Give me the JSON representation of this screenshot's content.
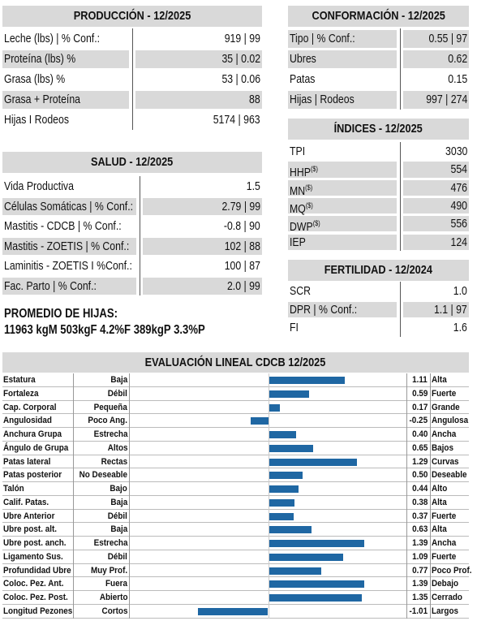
{
  "produccion": {
    "title": "PRODUCCIÓN - 12/2025",
    "rows": [
      {
        "label": "Leche (lbs) | % Conf.:",
        "value": "919 | 99"
      },
      {
        "label": "Proteína (lbs) %",
        "value": "35 | 0.02"
      },
      {
        "label": "Grasa (lbs) %",
        "value": "53 | 0.06"
      },
      {
        "label": "Grasa + Proteína",
        "value": "88"
      },
      {
        "label": "Hijas I Rodeos",
        "value": "5174 | 963"
      }
    ]
  },
  "conformacion": {
    "title": "CONFORMACIÓN - 12/2025",
    "rows": [
      {
        "label": "Tipo | % Conf.:",
        "value": "0.55 | 97"
      },
      {
        "label": "Ubres",
        "value": "0.62"
      },
      {
        "label": "Patas",
        "value": "0.15"
      },
      {
        "label": "Hijas | Rodeos",
        "value": "997 | 274"
      }
    ]
  },
  "indices": {
    "title": "ÍNDICES - 12/2025",
    "rows": [
      {
        "label": "TPI",
        "value": "3030"
      },
      {
        "label": "HHP",
        "sup": "($)",
        "value": "554"
      },
      {
        "label": "MN",
        "sup": "($)",
        "value": "476"
      },
      {
        "label": "MQ",
        "sup": "($)",
        "value": "490"
      },
      {
        "label": "DWP",
        "sup": "($)",
        "value": "556"
      },
      {
        "label": "IEP",
        "value": "124"
      }
    ]
  },
  "salud": {
    "title": "SALUD - 12/2025",
    "rows": [
      {
        "label": "Vida Productiva",
        "value": "1.5"
      },
      {
        "label": "Células Somáticas | % Conf.:",
        "value": "2.79 | 99"
      },
      {
        "label": "Mastitis - CDCB | % Conf.:",
        "value": "-0.8 | 90"
      },
      {
        "label": "Mastitis - ZOETIS | % Conf.:",
        "value": "102 | 88"
      },
      {
        "label": "Laminitis - ZOETIS I %Conf.:",
        "value": "100 | 87"
      },
      {
        "label": "Fac. Parto | % Conf.:",
        "value": "2.0 | 99"
      }
    ]
  },
  "fertilidad": {
    "title": "FERTILIDAD - 12/2024",
    "rows": [
      {
        "label": "SCR",
        "value": "1.0"
      },
      {
        "label": "DPR | % Conf.:",
        "value": "1.1 | 97"
      },
      {
        "label": "FI",
        "value": "1.6"
      }
    ]
  },
  "promedio": {
    "title": "PROMEDIO DE HIJAS:",
    "text": "11963 kgM 503kgF 4.2%F 389kgP 3.3%P"
  },
  "evaluacion": {
    "title": "EVALUACIÓN LINEAL CDCB 12/2025",
    "color": "#1f67a3",
    "xlim": [
      -2,
      2
    ],
    "traits": [
      "Estatura",
      "Fortaleza",
      "Cap. Corporal",
      "Angulosidad",
      "Anchura Grupa",
      "Ángulo de Grupa",
      "Patas lateral",
      "Patas posterior",
      "Talón",
      "Calif. Patas.",
      "Ubre Anterior",
      "Ubre post. alt.",
      "Ubre post. anch.",
      "Ligamento Sus.",
      "Profundidad Ubre",
      "Coloc. Pez. Ant.",
      "Coloc. Pez. Post.",
      "Longitud Pezones"
    ],
    "low": [
      "Baja",
      "Débil",
      "Pequeña",
      "Poco Ang.",
      "Estrecha",
      "Altos",
      "Rectas",
      "No Deseable",
      "Bajo",
      "Baja",
      "Débil",
      "Baja",
      "Estrecha",
      "Débil",
      "Muy Prof.",
      "Fuera",
      "Abierto",
      "Cortos"
    ],
    "high": [
      "Alta",
      "Fuerte",
      "Grande",
      "Angulosa",
      "Ancha",
      "Bajos",
      "Curvas",
      "Deseable",
      "Alto",
      "Alta",
      "Fuerte",
      "Alta",
      "Ancha",
      "Fuerte",
      "Poco Prof.",
      "Debajo",
      "Cerrado",
      "Largos"
    ],
    "values": [
      1.11,
      0.59,
      0.17,
      -0.25,
      0.4,
      0.65,
      1.29,
      0.5,
      0.44,
      0.38,
      0.37,
      0.63,
      1.39,
      1.09,
      0.77,
      1.39,
      1.35,
      -1.01
    ],
    "value_labels": [
      "1.11",
      "0.59",
      "0.17",
      "-0.25",
      "0.40",
      "0.65",
      "1.29",
      "0.50",
      "0.44",
      "0.38",
      "0.37",
      "0.63",
      "1.39",
      "1.09",
      "0.77",
      "1.39",
      "1.35",
      "-1.01"
    ]
  }
}
